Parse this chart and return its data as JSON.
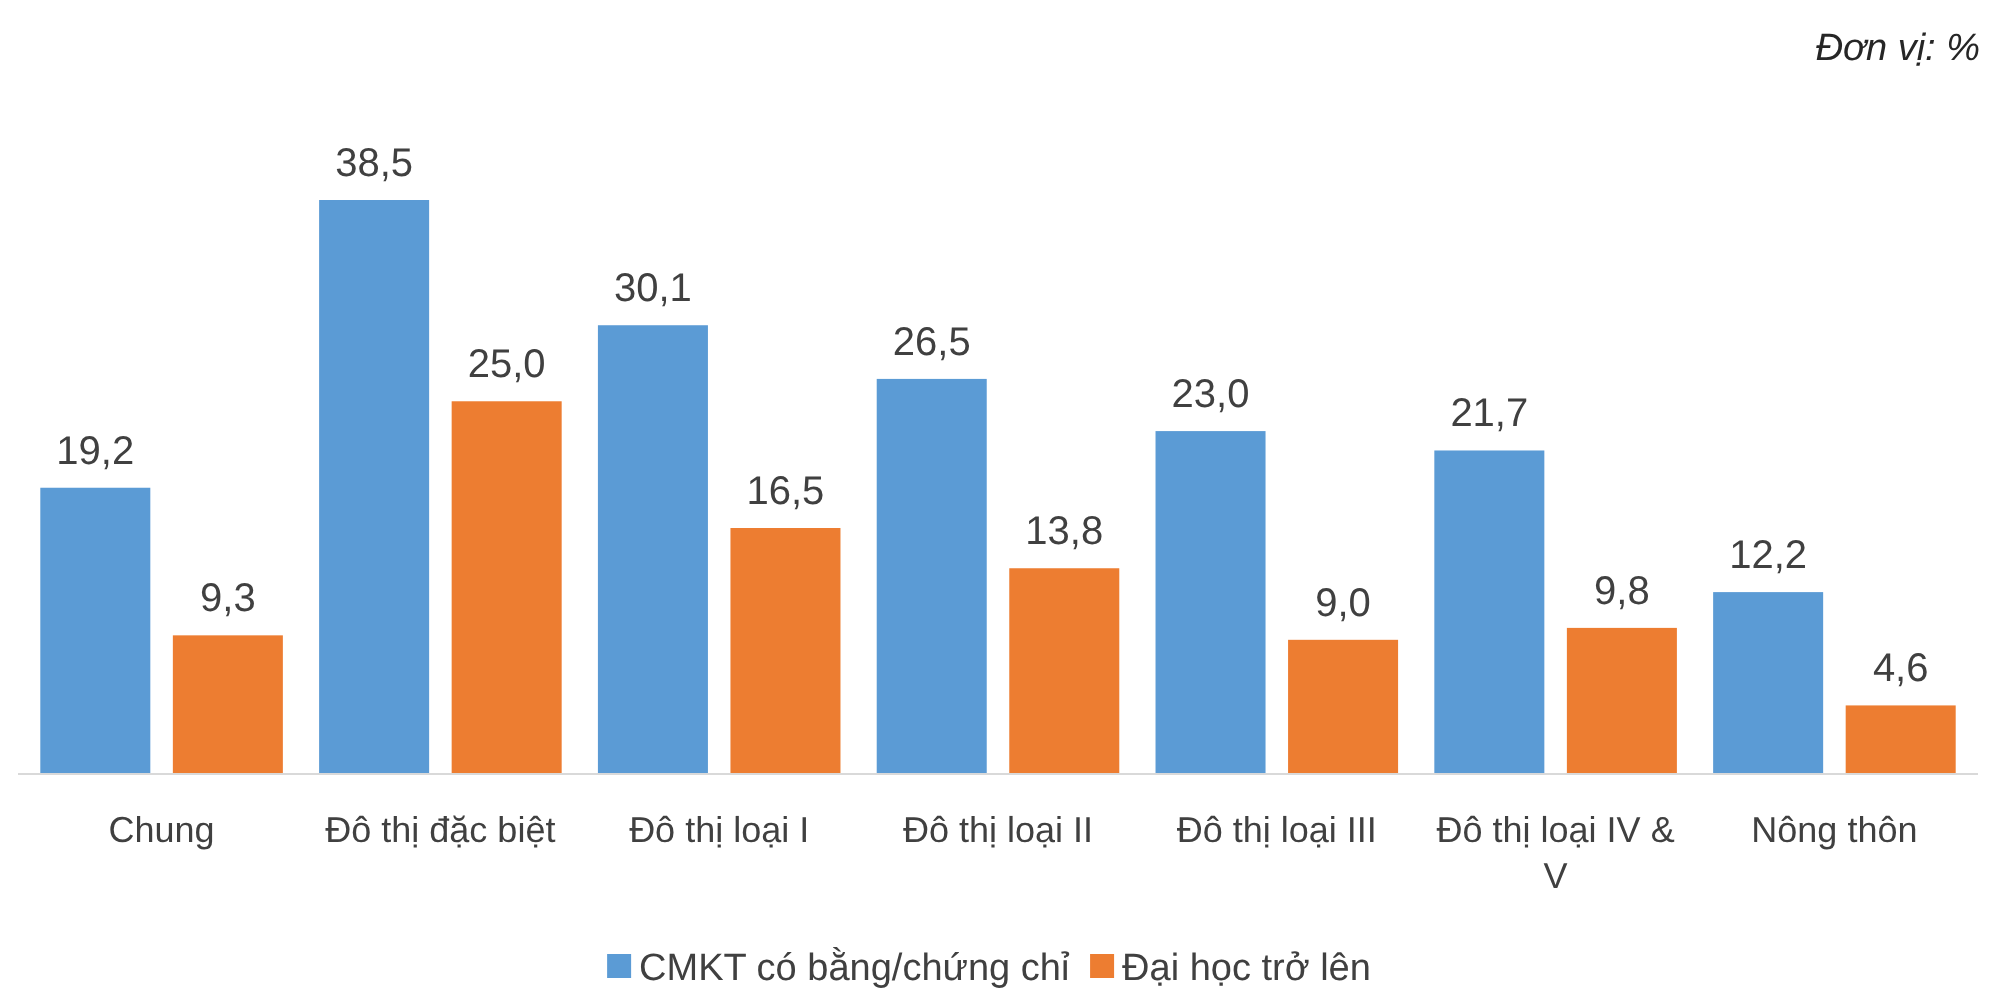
{
  "chart_data": {
    "type": "bar",
    "annotations": [
      "Đơn vị: %"
    ],
    "categories": [
      "Chung",
      "Đô thị đặc biệt",
      "Đô thị loại I",
      "Đô thị loại II",
      "Đô thị loại III",
      "Đô thị loại IV & V",
      "Nông thôn"
    ],
    "series": [
      {
        "name": "CMKT có bằng/chứng chỉ",
        "color": "#5b9bd5",
        "values": [
          19.2,
          38.5,
          30.1,
          26.5,
          23.0,
          21.7,
          12.2
        ],
        "value_labels": [
          "19,2",
          "38,5",
          "30,1",
          "26,5",
          "23,0",
          "21,7",
          "12,2"
        ]
      },
      {
        "name": "Đại học trở lên",
        "color": "#ed7d31",
        "values": [
          9.3,
          25.0,
          16.5,
          13.8,
          9.0,
          9.8,
          4.6
        ],
        "value_labels": [
          "9,3",
          "25,0",
          "16,5",
          "13,8",
          "9,0",
          "9,8",
          "4,6"
        ]
      }
    ],
    "legend": "bottom",
    "grid": false
  }
}
